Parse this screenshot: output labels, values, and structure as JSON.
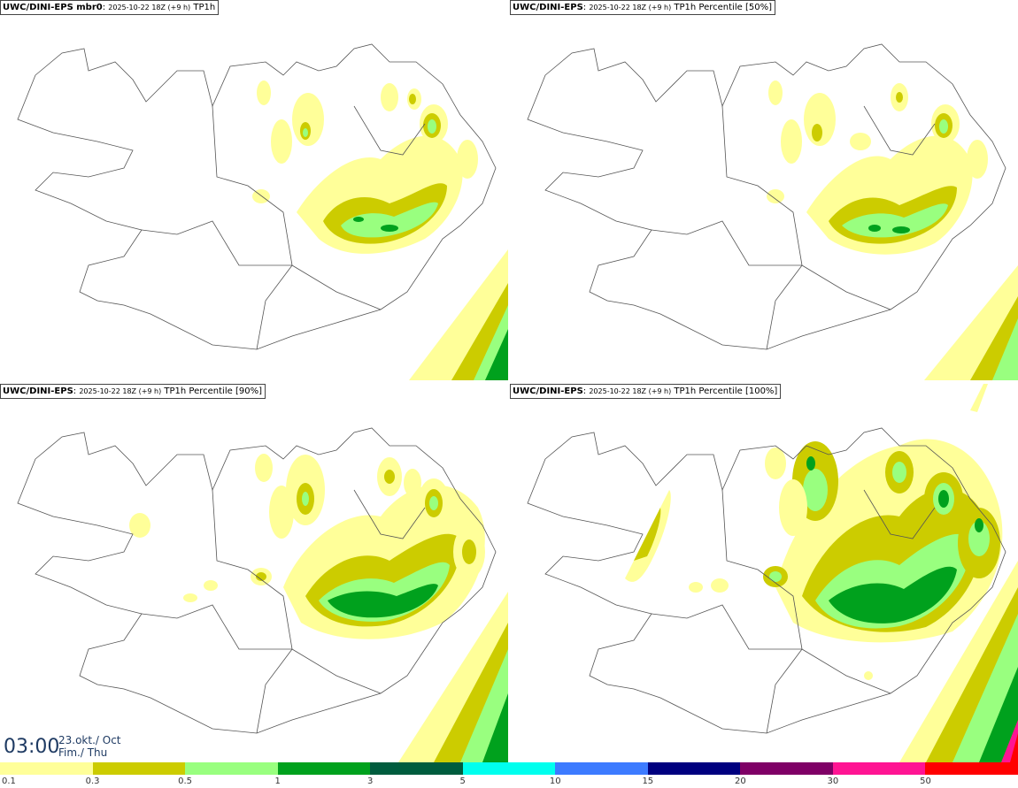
{
  "panels": [
    {
      "source": "UWC/DINI-EPS mbr0",
      "run": "2025-10-22 18Z (+9 h)",
      "product": "TP1h"
    },
    {
      "source": "UWC/DINI-EPS",
      "run": "2025-10-22 18Z (+9 h)",
      "product": "TP1h Percentile [50%]"
    },
    {
      "source": "UWC/DINI-EPS",
      "run": "2025-10-22 18Z (+9 h)",
      "product": "TP1h Percentile [90%]"
    },
    {
      "source": "UWC/DINI-EPS",
      "run": "2025-10-22 18Z (+9 h)",
      "product": "TP1h Percentile [100%]"
    }
  ],
  "valid_time": {
    "time": "03:00",
    "date_line1": "23.okt./ Oct",
    "date_line2": "Fim./ Thu"
  },
  "legend": {
    "labels": [
      "0.1",
      "0.3",
      "0.5",
      "1",
      "3",
      "5",
      "10",
      "15",
      "20",
      "30",
      "50"
    ],
    "colors": [
      "#ffff99",
      "#cccc00",
      "#99ff7f",
      "#00a11d",
      "#005c3e",
      "#00ffee",
      "#3d7bff",
      "#00007f",
      "#7f0066",
      "#ff1493",
      "#ff0000"
    ]
  },
  "colors": {
    "land_outline": "#555555",
    "time_text": "#1f3b63"
  }
}
